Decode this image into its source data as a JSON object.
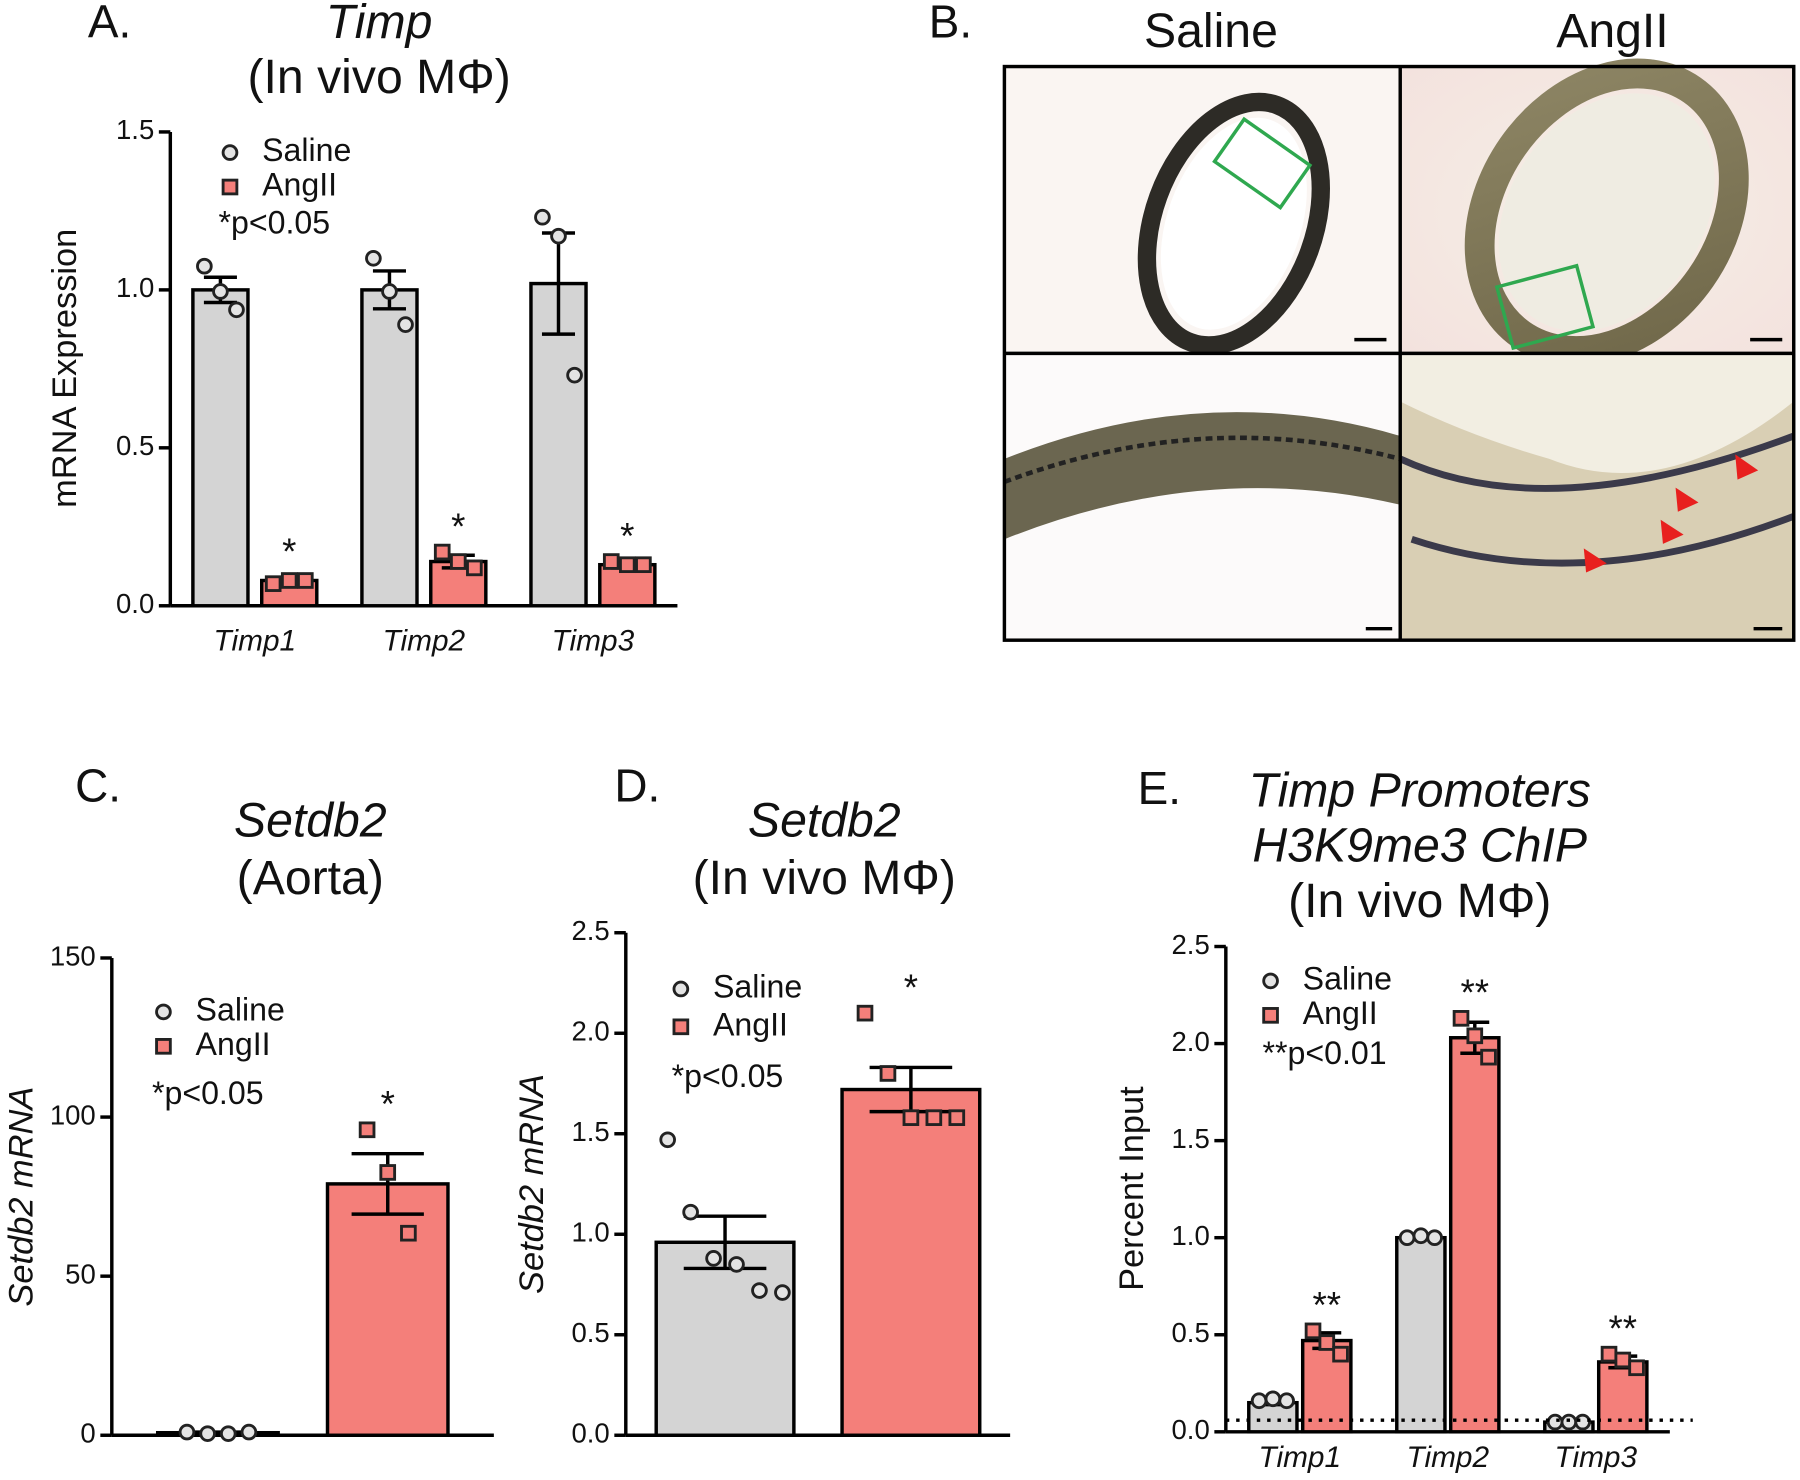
{
  "chart_data": [
    {
      "type": "bar",
      "panel": "A.",
      "title": [
        "Timp"
      ],
      "subtitle": "(In vivo MΦ)",
      "ylabel": "mRNA Expression",
      "categories": [
        "Timp1",
        "Timp2",
        "Timp3"
      ],
      "series": [
        {
          "name": "Saline",
          "color": "#d4d4d4",
          "values": [
            1.0,
            1.0,
            1.02
          ],
          "errors": [
            0.04,
            0.06,
            0.16
          ],
          "points": [
            [
              1.075,
              0.995,
              0.937
            ],
            [
              1.1,
              0.995,
              0.89
            ],
            [
              1.23,
              1.17,
              0.73
            ]
          ],
          "significance": [
            null,
            null,
            null
          ]
        },
        {
          "name": "AngII",
          "color": "#f47f7a",
          "values": [
            0.08,
            0.14,
            0.13
          ],
          "errors": [
            0.01,
            0.02,
            0.01
          ],
          "points": [
            [
              0.07,
              0.08,
              0.08
            ],
            [
              0.17,
              0.14,
              0.12
            ],
            [
              0.14,
              0.13,
              0.13
            ]
          ],
          "significance": [
            "*",
            "*",
            "*"
          ]
        }
      ],
      "note": "*p<0.05",
      "ylim": [
        0,
        1.5
      ],
      "yticks": [
        {
          "value": 0,
          "label": "0.0"
        },
        0.5,
        {
          "value": 1,
          "label": "1.0"
        },
        1.5
      ]
    },
    {
      "type": "bar",
      "panel": "C.",
      "title": [
        "Setdb2"
      ],
      "subtitle": "(Aorta)",
      "ylabel": "Setdb2 mRNA",
      "categories": [
        null
      ],
      "series": [
        {
          "name": "Saline",
          "color": "#d4d4d4",
          "values": [
            0.8
          ],
          "errors": [
            0.2
          ],
          "points": [
            [
              1,
              0.5,
              0.5,
              1
            ]
          ],
          "significance": [
            null
          ]
        },
        {
          "name": "AngII",
          "color": "#f47f7a",
          "values": [
            79
          ],
          "errors": [
            9.5
          ],
          "points": [
            [
              96,
              82.6,
              63.5
            ]
          ],
          "significance": [
            "*"
          ]
        }
      ],
      "note": "*p<0.05",
      "ylim": [
        0,
        150
      ],
      "yticks": [
        0,
        50,
        100,
        150
      ]
    },
    {
      "type": "bar",
      "panel": "D.",
      "title": [
        "Setdb2"
      ],
      "subtitle": "(In vivo MΦ)",
      "ylabel": "Setdb2 mRNA",
      "categories": [
        null
      ],
      "series": [
        {
          "name": "Saline",
          "color": "#d4d4d4",
          "values": [
            0.96
          ],
          "errors": [
            0.13
          ],
          "points": [
            [
              1.47,
              1.11,
              0.88,
              0.85,
              0.72,
              0.71
            ]
          ],
          "significance": [
            null
          ]
        },
        {
          "name": "AngII",
          "color": "#f47f7a",
          "values": [
            1.72
          ],
          "errors": [
            0.11
          ],
          "points": [
            [
              2.1,
              1.8,
              1.58,
              1.58,
              1.58
            ]
          ],
          "significance": [
            "*"
          ]
        }
      ],
      "note": "*p<0.05",
      "ylim": [
        0,
        2.5
      ],
      "yticks": [
        {
          "value": 0,
          "label": "0.0"
        },
        0.5,
        {
          "value": 1,
          "label": "1.0"
        },
        1.5,
        {
          "value": 2,
          "label": "2.0"
        },
        2.5
      ]
    },
    {
      "type": "bar",
      "panel": "E.",
      "title": [
        "Timp Promoters",
        "H3K9me3 ChIP"
      ],
      "subtitle": "(In vivo MΦ)",
      "ylabel": "Percent Input",
      "categories": [
        "Timp1",
        "Timp2",
        "Timp3"
      ],
      "series": [
        {
          "name": "Saline",
          "color": "#d4d4d4",
          "values": [
            0.15,
            1.0,
            0.05
          ],
          "errors": [
            0.01,
            0.01,
            0.005
          ],
          "points": [
            [
              0.16,
              0.17,
              0.16
            ],
            [
              1.0,
              1.01,
              1.0
            ],
            [
              0.05,
              0.05,
              0.05
            ]
          ],
          "significance": [
            null,
            null,
            null
          ]
        },
        {
          "name": "AngII",
          "color": "#f47f7a",
          "values": [
            0.47,
            2.03,
            0.36
          ],
          "errors": [
            0.04,
            0.08,
            0.03
          ],
          "points": [
            [
              0.52,
              0.46,
              0.4
            ],
            [
              2.13,
              2.04,
              1.93
            ],
            [
              0.4,
              0.37,
              0.33
            ]
          ],
          "significance": [
            "**",
            "**",
            "**"
          ]
        }
      ],
      "note": "**p<0.01",
      "reference_line": 0.06,
      "ylim": [
        0,
        2.5
      ],
      "yticks": [
        {
          "value": 0,
          "label": "0.0"
        },
        0.5,
        {
          "value": 1,
          "label": "1.0"
        },
        1.5,
        {
          "value": 2,
          "label": "2.0"
        },
        2.5
      ]
    }
  ],
  "panel_b": {
    "label": "B.",
    "columns": [
      "Saline",
      "AngII"
    ]
  }
}
